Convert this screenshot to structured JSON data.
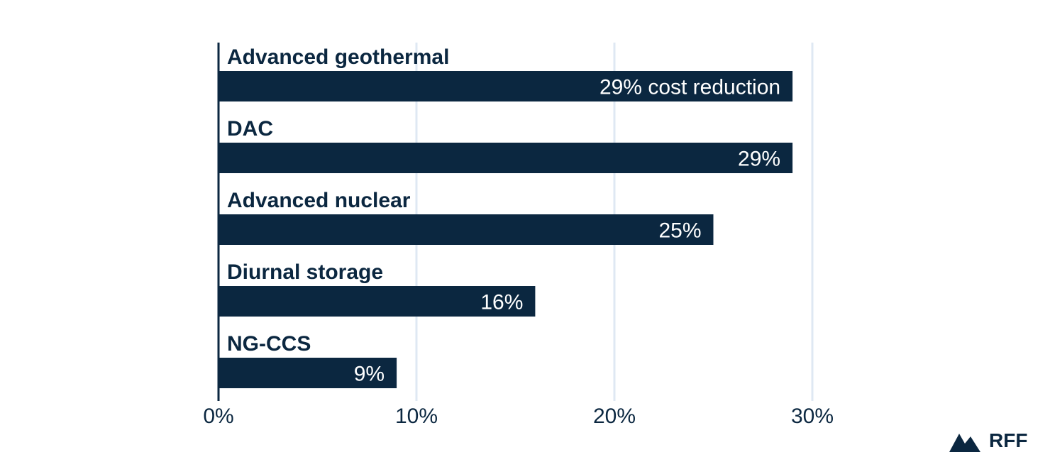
{
  "chart_data": {
    "type": "bar",
    "orientation": "horizontal",
    "categories": [
      "Advanced geothermal",
      "DAC",
      "Advanced nuclear",
      "Diurnal storage",
      "NG-CCS"
    ],
    "values": [
      29,
      29,
      25,
      16,
      9
    ],
    "value_labels": [
      "29% cost reduction",
      "29%",
      "25%",
      "16%",
      "9%"
    ],
    "x_ticks": [
      "0%",
      "10%",
      "20%",
      "30%"
    ],
    "x_tick_values": [
      0,
      10,
      20,
      30
    ],
    "xlim": [
      0,
      30
    ],
    "grid": true,
    "legend": "none",
    "title": "",
    "xlabel": "",
    "ylabel": "",
    "colors": {
      "bar": "#0b2740",
      "grid": "#dfe8f3",
      "text": "#0b2740",
      "bar_text": "#ffffff"
    }
  },
  "logo": {
    "text": "RFF",
    "icon": "mountain-icon"
  }
}
